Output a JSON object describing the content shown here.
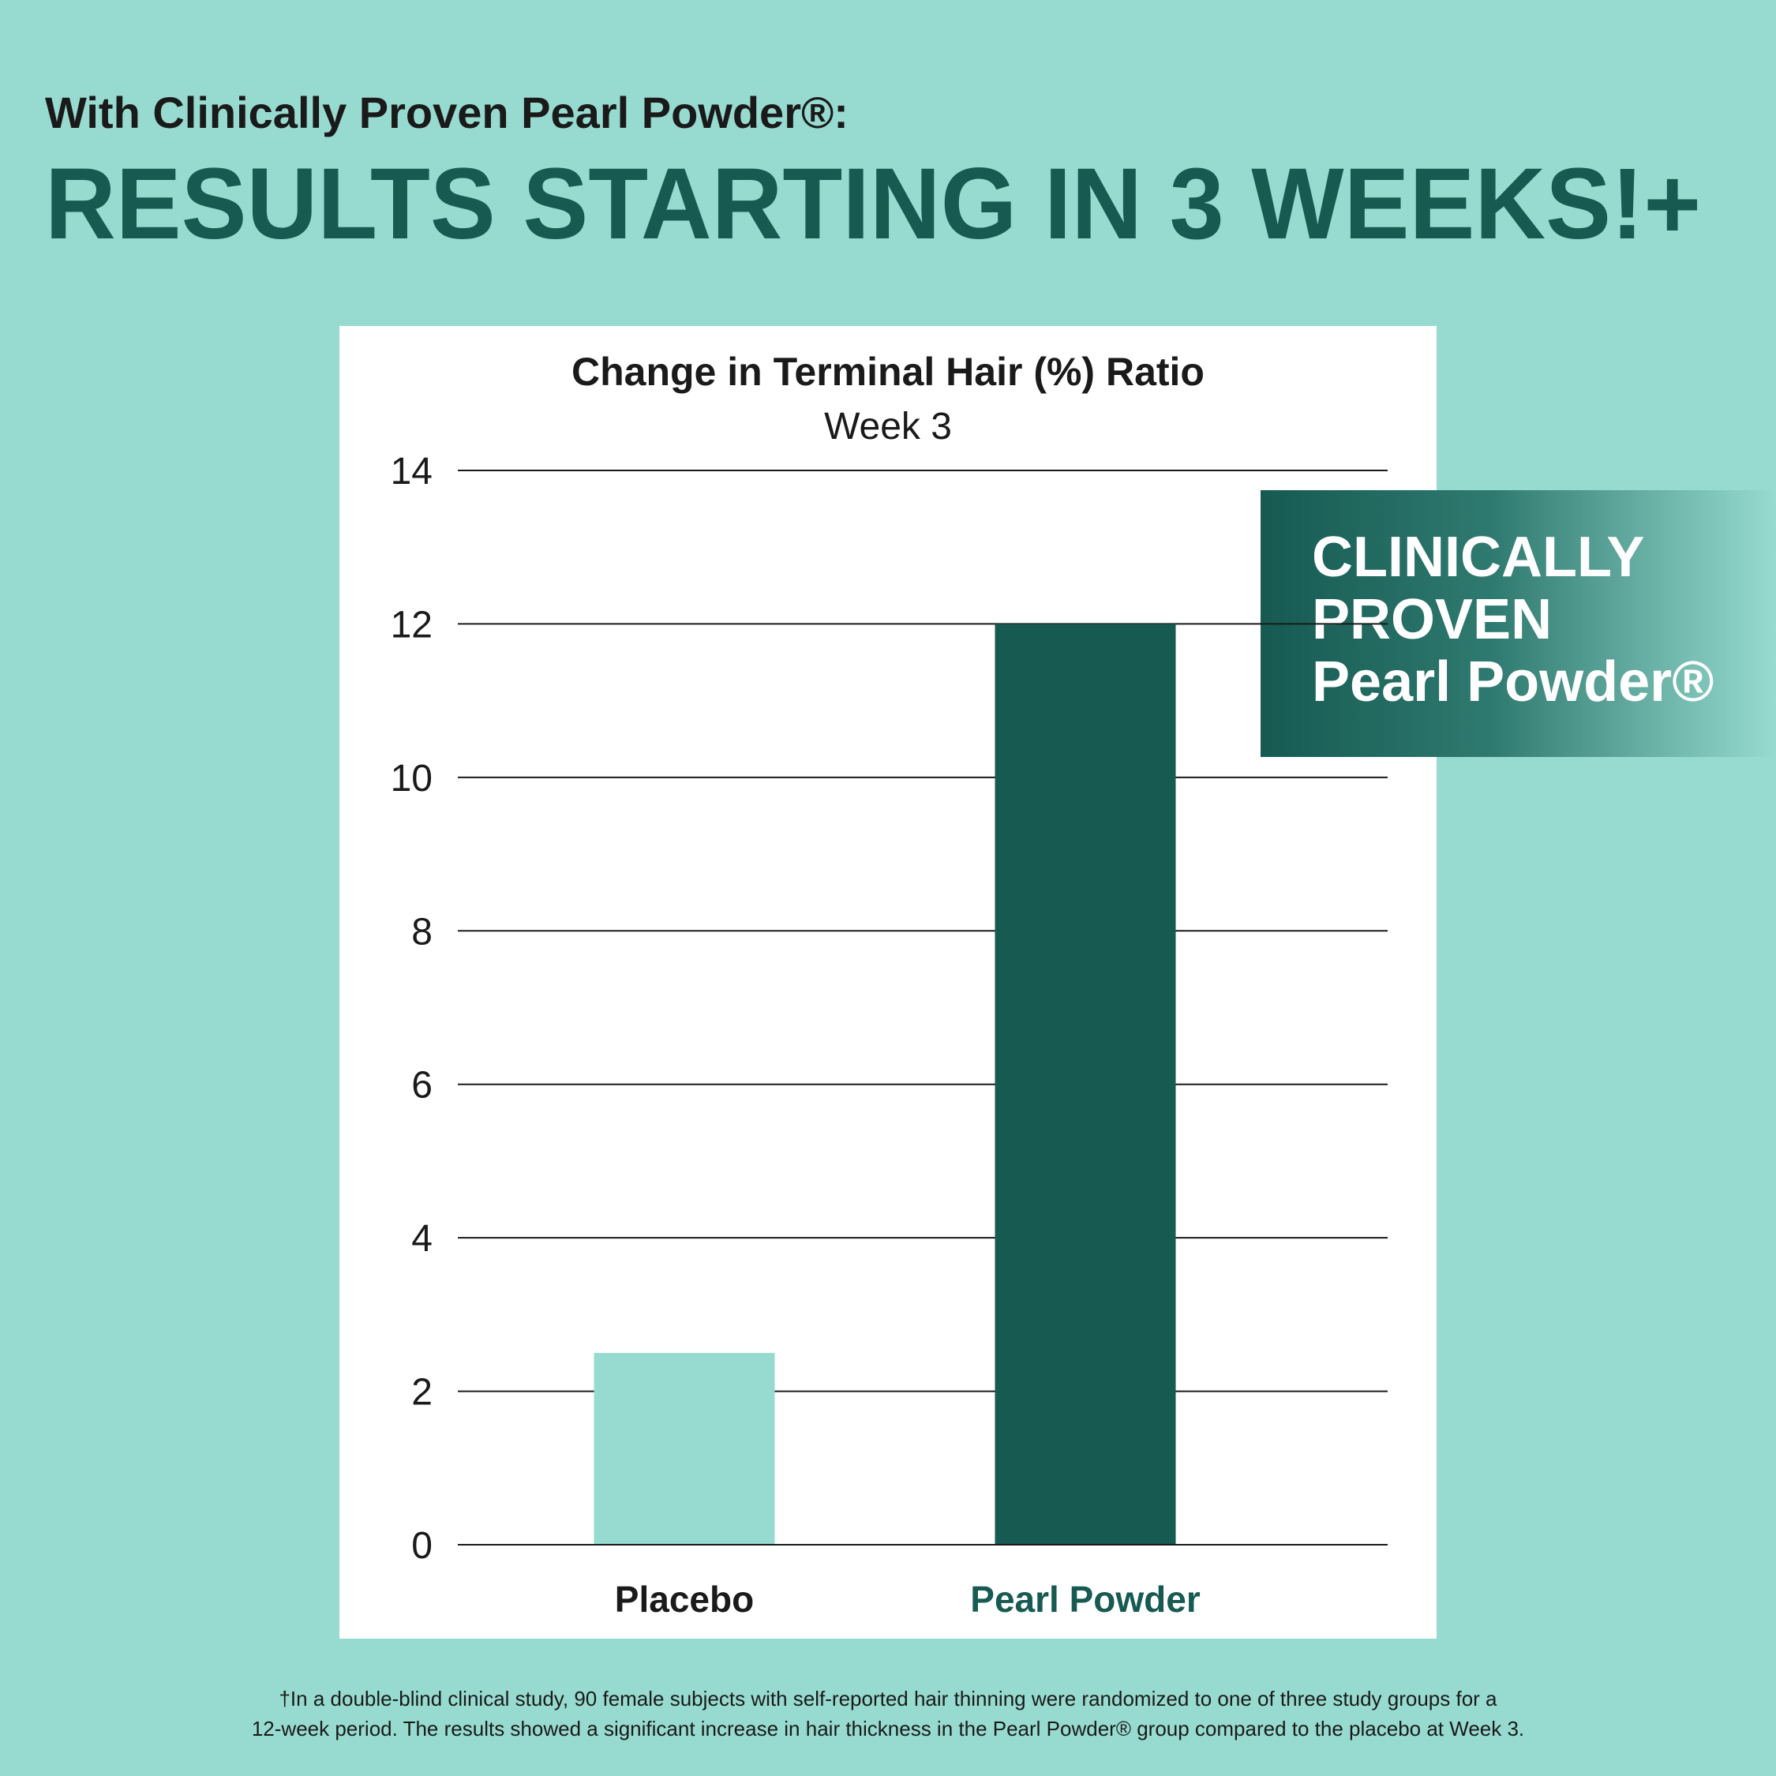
{
  "header": {
    "kicker": "With Clinically Proven Pearl Powder®:",
    "headline": "RESULTS STARTING IN 3 WEEKS!+"
  },
  "badge": {
    "lines": [
      "CLINICALLY",
      "PROVEN",
      "Pearl Powder®"
    ]
  },
  "footnote": {
    "lines": [
      "†In a double-blind clinical study, 90 female subjects with self-reported hair thinning were randomized to one of three study groups for a",
      "12-week period. The results showed a significant increase in hair thickness in the Pearl Powder® group compared to the placebo at Week 3."
    ]
  },
  "chart_data": {
    "type": "bar",
    "title": "Change in Terminal Hair (%) Ratio",
    "subtitle": "Week 3",
    "categories": [
      "Placebo",
      "Pearl Powder"
    ],
    "values": [
      2.5,
      12
    ],
    "colors": [
      "#97dbd0",
      "#165a52"
    ],
    "category_label_colors": [
      "#1a1a1a",
      "#165a52"
    ],
    "ylim": [
      0,
      14
    ],
    "yticks": [
      0,
      2,
      4,
      6,
      8,
      10,
      12,
      14
    ],
    "grid": true
  }
}
